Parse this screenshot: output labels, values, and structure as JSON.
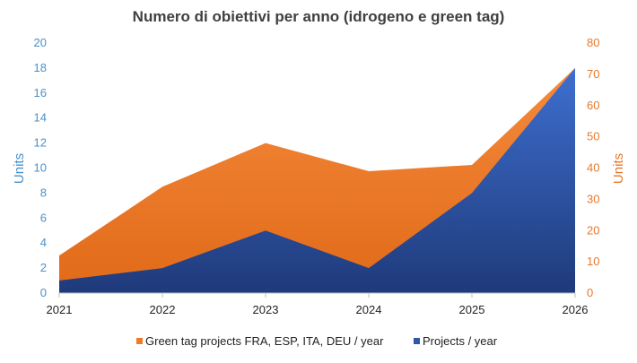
{
  "chart_data": {
    "type": "area",
    "title": "Numero di obiettivi per anno (idrogeno e green tag)",
    "x": [
      "2021",
      "2022",
      "2023",
      "2024",
      "2025",
      "2026"
    ],
    "y_left": {
      "label": "Units",
      "range": [
        0,
        20
      ],
      "ticks": [
        0,
        2,
        4,
        6,
        8,
        10,
        12,
        14,
        16,
        18,
        20
      ],
      "color": "#4a90c8"
    },
    "y_right": {
      "label": "Units",
      "range": [
        0,
        80
      ],
      "ticks": [
        0,
        10,
        20,
        30,
        40,
        50,
        60,
        70,
        80
      ],
      "color": "#e6782c"
    },
    "series": [
      {
        "name": "Green tag projects FRA, ESP, ITA, DEU / year",
        "axis": "right",
        "values": [
          12,
          34,
          48,
          39,
          41,
          72
        ],
        "color": "#ee7a2a"
      },
      {
        "name": "Projects / year",
        "axis": "left",
        "values": [
          1,
          2,
          5,
          2,
          8,
          18
        ],
        "color": "#2f56a8"
      }
    ],
    "grid": false,
    "legend": "bottom"
  }
}
